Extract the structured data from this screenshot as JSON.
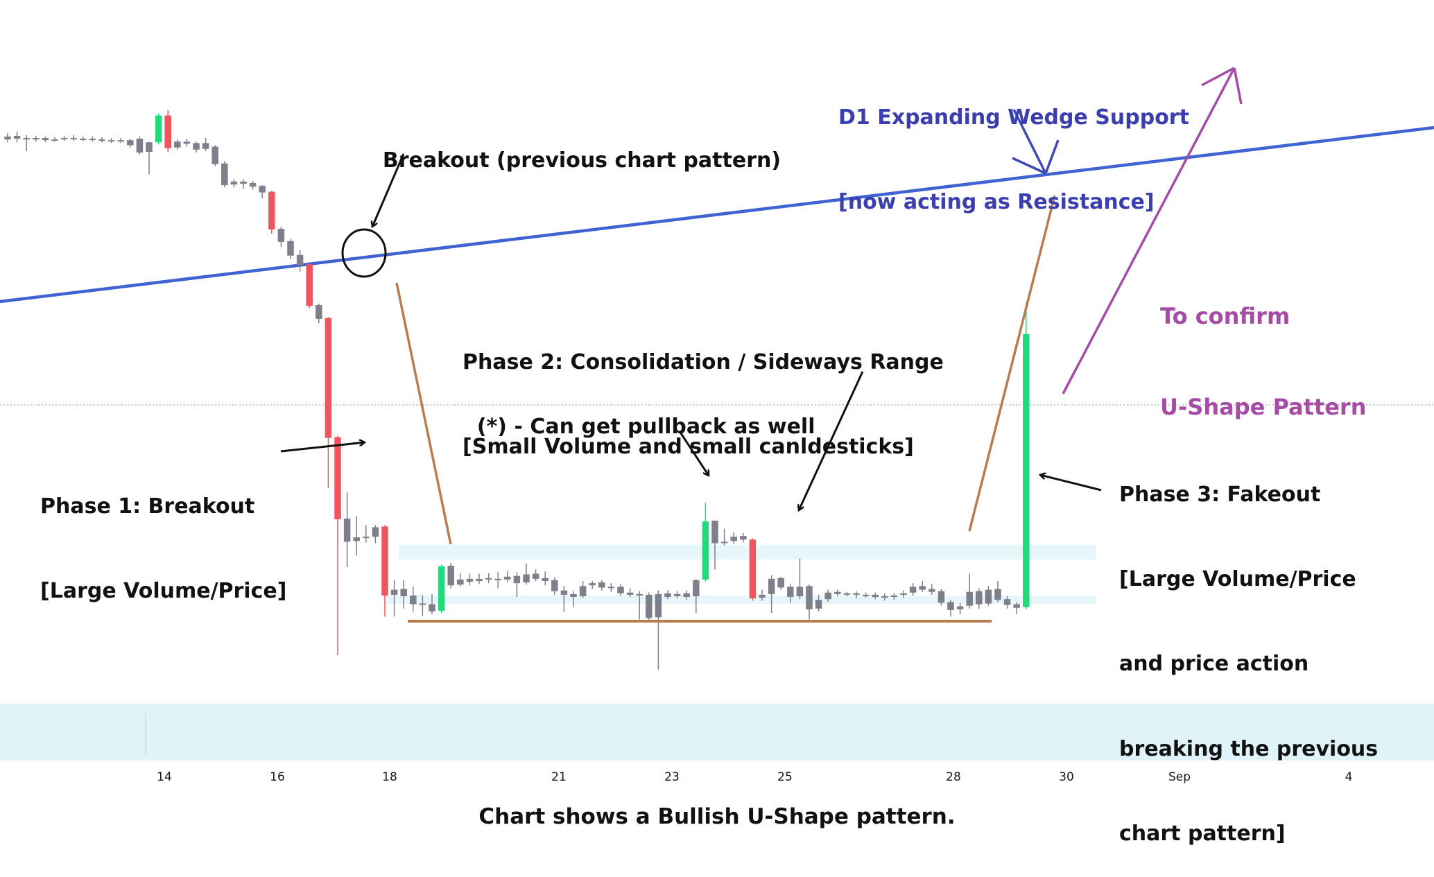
{
  "colors": {
    "up": "#22d97c",
    "down": "#f0555f",
    "neutral": "#7e7f8a",
    "wedge_line": "#3f63d1",
    "range_line": "#b87c4f",
    "range_band": "#e6f6fb",
    "bottom_band": "#dff3f9",
    "blue_text": "#3b3fae",
    "purple_text": "#a64ca6"
  },
  "annotations": {
    "breakout_prev": "Breakout (previous chart pattern)",
    "wedge_line1": "D1 Expanding Wedge Support",
    "wedge_line2": "[now acting as Resistance]",
    "confirm_line1": "To confirm",
    "confirm_line2": "U-Shape Pattern",
    "phase2_line1": "Phase 2: Consolidation / Sideways Range",
    "phase2_line2": "[Small Volume and small canldesticks]",
    "pullback": "(*) - Can get pullback as well",
    "phase1_line1": "Phase 1: Breakout",
    "phase1_line2": "[Large Volume/Price]",
    "phase3_line1": "Phase 3: Fakeout",
    "phase3_line2": "[Large Volume/Price",
    "phase3_line3": "and price action",
    "phase3_line4": "breaking the previous",
    "phase3_line5": "chart pattern]"
  },
  "caption": "Chart shows a Bullish U-Shape pattern.",
  "chart_data": {
    "type": "candlestick",
    "x_ticks": [
      "14",
      "16",
      "18",
      "21",
      "23",
      "25",
      "28",
      "30",
      "Sep",
      "4"
    ],
    "wedge_line": {
      "direction": "ascending"
    },
    "phases": [
      "Phase 1: Breakout",
      "Phase 2: Consolidation / Sideways Range",
      "Phase 3: Fakeout"
    ],
    "candles": [
      {
        "o": 103.4,
        "c": 103.8,
        "h": 104.3,
        "l": 103.0
      },
      {
        "o": 103.9,
        "c": 103.5,
        "h": 104.5,
        "l": 103.0
      },
      {
        "o": 103.6,
        "c": 103.4,
        "h": 104.0,
        "l": 101.8
      },
      {
        "o": 103.4,
        "c": 103.6,
        "h": 103.9,
        "l": 103.1
      },
      {
        "o": 103.6,
        "c": 103.3,
        "h": 103.8,
        "l": 103.0
      },
      {
        "o": 103.4,
        "c": 103.4,
        "h": 103.7,
        "l": 103.1
      },
      {
        "o": 103.4,
        "c": 103.6,
        "h": 103.9,
        "l": 103.2
      },
      {
        "o": 103.6,
        "c": 103.5,
        "h": 104.0,
        "l": 103.2
      },
      {
        "o": 103.5,
        "c": 103.5,
        "h": 103.8,
        "l": 103.2
      },
      {
        "o": 103.5,
        "c": 103.4,
        "h": 103.8,
        "l": 103.1
      },
      {
        "o": 103.4,
        "c": 103.3,
        "h": 103.7,
        "l": 103.0
      },
      {
        "o": 103.3,
        "c": 103.2,
        "h": 103.6,
        "l": 102.9
      },
      {
        "o": 103.2,
        "c": 103.3,
        "h": 103.6,
        "l": 102.9
      },
      {
        "o": 103.3,
        "c": 102.6,
        "h": 103.5,
        "l": 102.3
      },
      {
        "o": 103.5,
        "c": 101.6,
        "h": 103.8,
        "l": 101.3
      },
      {
        "o": 101.7,
        "c": 103.0,
        "h": 103.1,
        "l": 98.6
      },
      {
        "o": 103.0,
        "c": 106.7,
        "h": 107.0,
        "l": 102.7
      },
      {
        "o": 106.7,
        "c": 102.2,
        "h": 107.4,
        "l": 101.7
      },
      {
        "o": 102.3,
        "c": 103.1,
        "h": 103.4,
        "l": 102.0
      },
      {
        "o": 103.1,
        "c": 102.8,
        "h": 103.5,
        "l": 102.4
      },
      {
        "o": 102.9,
        "c": 102.0,
        "h": 103.1,
        "l": 101.6
      },
      {
        "o": 102.1,
        "c": 102.9,
        "h": 103.6,
        "l": 101.8
      },
      {
        "o": 102.4,
        "c": 100.0,
        "h": 102.6,
        "l": 99.7
      },
      {
        "o": 100.1,
        "c": 97.1,
        "h": 100.4,
        "l": 96.8
      },
      {
        "o": 97.2,
        "c": 97.6,
        "h": 97.9,
        "l": 96.8
      },
      {
        "o": 97.6,
        "c": 97.3,
        "h": 97.9,
        "l": 96.6
      },
      {
        "o": 97.4,
        "c": 96.9,
        "h": 97.7,
        "l": 96.5
      },
      {
        "o": 97.0,
        "c": 96.1,
        "h": 97.1,
        "l": 95.3
      },
      {
        "o": 96.2,
        "c": 91.0,
        "h": 96.3,
        "l": 90.4
      },
      {
        "o": 91.1,
        "c": 89.3,
        "h": 91.4,
        "l": 88.6
      },
      {
        "o": 89.4,
        "c": 87.4,
        "h": 89.7,
        "l": 86.9
      },
      {
        "o": 87.5,
        "c": 86.1,
        "h": 88.2,
        "l": 85.2
      },
      {
        "o": 86.2,
        "c": 80.5,
        "h": 86.3,
        "l": 80.2
      },
      {
        "o": 80.6,
        "c": 78.7,
        "h": 80.8,
        "l": 78.1
      },
      {
        "o": 78.8,
        "c": 62.3,
        "h": 79.0,
        "l": 55.4
      },
      {
        "o": 62.4,
        "c": 51.1,
        "h": 62.6,
        "l": 32.4
      },
      {
        "o": 51.2,
        "c": 48.0,
        "h": 54.8,
        "l": 44.5
      },
      {
        "o": 48.1,
        "c": 48.6,
        "h": 51.5,
        "l": 46.1
      },
      {
        "o": 48.7,
        "c": 48.6,
        "h": 50.3,
        "l": 47.9
      },
      {
        "o": 48.7,
        "c": 50.0,
        "h": 50.3,
        "l": 47.8
      },
      {
        "o": 50.1,
        "c": 40.6,
        "h": 50.3,
        "l": 37.7
      },
      {
        "o": 40.7,
        "c": 41.4,
        "h": 42.7,
        "l": 37.7
      },
      {
        "o": 41.5,
        "c": 40.5,
        "h": 42.7,
        "l": 38.8
      },
      {
        "o": 40.6,
        "c": 39.4,
        "h": 41.8,
        "l": 38.4
      },
      {
        "o": 39.5,
        "c": 39.3,
        "h": 40.6,
        "l": 37.8
      },
      {
        "o": 39.4,
        "c": 38.4,
        "h": 40.8,
        "l": 38.0
      },
      {
        "o": 38.5,
        "c": 44.6,
        "h": 44.8,
        "l": 38.2
      },
      {
        "o": 44.7,
        "c": 42.0,
        "h": 45.1,
        "l": 41.6
      },
      {
        "o": 42.1,
        "c": 42.8,
        "h": 43.7,
        "l": 41.8
      },
      {
        "o": 42.9,
        "c": 42.5,
        "h": 43.6,
        "l": 42.0
      },
      {
        "o": 42.6,
        "c": 42.9,
        "h": 43.6,
        "l": 42.2
      },
      {
        "o": 43.0,
        "c": 42.8,
        "h": 43.7,
        "l": 42.3
      },
      {
        "o": 42.9,
        "c": 42.7,
        "h": 43.8,
        "l": 41.6
      },
      {
        "o": 42.8,
        "c": 43.2,
        "h": 44.0,
        "l": 42.4
      },
      {
        "o": 43.3,
        "c": 42.3,
        "h": 43.8,
        "l": 40.4
      },
      {
        "o": 42.4,
        "c": 43.5,
        "h": 45.0,
        "l": 42.1
      },
      {
        "o": 43.6,
        "c": 42.9,
        "h": 44.2,
        "l": 42.6
      },
      {
        "o": 43.0,
        "c": 42.6,
        "h": 43.9,
        "l": 42.0
      },
      {
        "o": 42.7,
        "c": 41.2,
        "h": 43.1,
        "l": 40.7
      },
      {
        "o": 41.3,
        "c": 40.7,
        "h": 41.9,
        "l": 38.3
      },
      {
        "o": 40.8,
        "c": 40.4,
        "h": 41.2,
        "l": 39.0
      },
      {
        "o": 40.5,
        "c": 41.9,
        "h": 42.6,
        "l": 40.2
      },
      {
        "o": 42.0,
        "c": 42.3,
        "h": 42.6,
        "l": 41.5
      },
      {
        "o": 42.4,
        "c": 41.7,
        "h": 42.7,
        "l": 41.3
      },
      {
        "o": 41.8,
        "c": 41.7,
        "h": 42.3,
        "l": 41.1
      },
      {
        "o": 41.8,
        "c": 40.9,
        "h": 42.2,
        "l": 40.5
      },
      {
        "o": 41.0,
        "c": 40.7,
        "h": 41.6,
        "l": 40.4
      },
      {
        "o": 40.8,
        "c": 40.6,
        "h": 41.2,
        "l": 37.3
      },
      {
        "o": 40.7,
        "c": 37.5,
        "h": 41.0,
        "l": 36.9
      },
      {
        "o": 37.6,
        "c": 40.8,
        "h": 41.3,
        "l": 30.4
      },
      {
        "o": 40.9,
        "c": 40.4,
        "h": 41.3,
        "l": 40.1
      },
      {
        "o": 40.5,
        "c": 40.8,
        "h": 41.2,
        "l": 40.2
      },
      {
        "o": 40.9,
        "c": 40.4,
        "h": 41.3,
        "l": 40.0
      },
      {
        "o": 40.5,
        "c": 42.7,
        "h": 42.9,
        "l": 38.2
      },
      {
        "o": 42.8,
        "c": 50.8,
        "h": 53.4,
        "l": 42.5
      },
      {
        "o": 50.9,
        "c": 47.8,
        "h": 50.9,
        "l": 44.2
      },
      {
        "o": 47.9,
        "c": 48.0,
        "h": 49.8,
        "l": 47.5
      },
      {
        "o": 48.1,
        "c": 48.7,
        "h": 49.3,
        "l": 47.7
      },
      {
        "o": 48.8,
        "c": 48.3,
        "h": 49.2,
        "l": 47.9
      },
      {
        "o": 48.3,
        "c": 40.2,
        "h": 48.5,
        "l": 39.9
      },
      {
        "o": 40.3,
        "c": 40.7,
        "h": 41.4,
        "l": 39.9
      },
      {
        "o": 40.8,
        "c": 42.9,
        "h": 43.4,
        "l": 38.2
      },
      {
        "o": 43.0,
        "c": 41.7,
        "h": 43.2,
        "l": 41.4
      },
      {
        "o": 41.8,
        "c": 40.4,
        "h": 42.2,
        "l": 39.6
      },
      {
        "o": 40.5,
        "c": 41.8,
        "h": 45.7,
        "l": 40.1
      },
      {
        "o": 41.9,
        "c": 38.7,
        "h": 42.1,
        "l": 37.3
      },
      {
        "o": 38.8,
        "c": 40.0,
        "h": 40.7,
        "l": 38.4
      },
      {
        "o": 40.1,
        "c": 41.0,
        "h": 41.4,
        "l": 39.7
      },
      {
        "o": 41.1,
        "c": 40.8,
        "h": 41.4,
        "l": 40.5
      },
      {
        "o": 40.9,
        "c": 40.8,
        "h": 41.1,
        "l": 40.5
      },
      {
        "o": 40.9,
        "c": 40.7,
        "h": 41.2,
        "l": 40.2
      },
      {
        "o": 40.7,
        "c": 40.6,
        "h": 41.0,
        "l": 40.3
      },
      {
        "o": 40.7,
        "c": 40.4,
        "h": 41.0,
        "l": 40.1
      },
      {
        "o": 40.5,
        "c": 40.3,
        "h": 40.9,
        "l": 39.9
      },
      {
        "o": 40.4,
        "c": 40.6,
        "h": 40.9,
        "l": 40.0
      },
      {
        "o": 40.7,
        "c": 40.9,
        "h": 41.3,
        "l": 40.3
      },
      {
        "o": 41.0,
        "c": 41.8,
        "h": 42.3,
        "l": 40.6
      },
      {
        "o": 41.9,
        "c": 41.4,
        "h": 42.6,
        "l": 41.1
      },
      {
        "o": 41.5,
        "c": 41.1,
        "h": 42.2,
        "l": 40.7
      },
      {
        "o": 41.2,
        "c": 39.6,
        "h": 41.5,
        "l": 39.2
      },
      {
        "o": 39.7,
        "c": 38.6,
        "h": 40.0,
        "l": 37.7
      },
      {
        "o": 38.7,
        "c": 39.1,
        "h": 39.6,
        "l": 38.0
      },
      {
        "o": 39.2,
        "c": 41.1,
        "h": 43.6,
        "l": 38.8
      },
      {
        "o": 41.2,
        "c": 39.4,
        "h": 41.6,
        "l": 38.8
      },
      {
        "o": 39.5,
        "c": 41.4,
        "h": 41.9,
        "l": 39.2
      },
      {
        "o": 41.5,
        "c": 40.0,
        "h": 42.6,
        "l": 39.7
      },
      {
        "o": 40.1,
        "c": 39.3,
        "h": 40.5,
        "l": 38.8
      },
      {
        "o": 39.4,
        "c": 38.9,
        "h": 39.7,
        "l": 38.0
      },
      {
        "o": 39.0,
        "c": 76.6,
        "h": 81.0,
        "l": 38.7
      }
    ]
  }
}
